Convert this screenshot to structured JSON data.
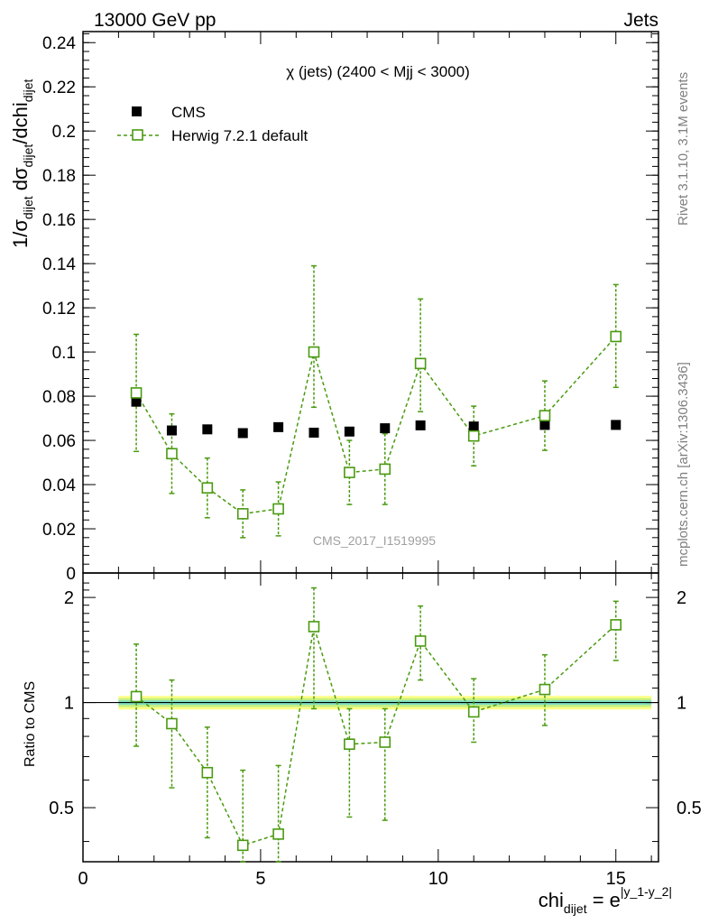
{
  "header": {
    "left": "13000 GeV pp",
    "right": "Jets"
  },
  "side_labels": {
    "rivet": "Rivet 3.1.10,  3.1M events",
    "mcplots": "mcplots.cern.ch [arXiv:1306.3436]"
  },
  "colors": {
    "cms": "#000000",
    "herwig": "#4a9a10",
    "band_outer": "#ffff88",
    "band_mid": "#c8f080",
    "band_inner": "#7fe0c0"
  },
  "chart_data": [
    {
      "type": "scatter",
      "panel": "main",
      "title": "χ (jets) (2400 < Mjj < 3000)",
      "watermark": "CMS_2017_I1519995",
      "ylabel": "1/σdijet dσdijet/dchidijet",
      "xlim": [
        0,
        16.2
      ],
      "ylim": [
        0,
        0.245
      ],
      "yticks": [
        0,
        0.02,
        0.04,
        0.06,
        0.08,
        0.1,
        0.12,
        0.14,
        0.16,
        0.18,
        0.2,
        0.22,
        0.24
      ],
      "ytick_labels": [
        "0",
        "0.02",
        "0.04",
        "0.06",
        "0.08",
        "0.1",
        "0.12",
        "0.14",
        "0.16",
        "0.18",
        "0.2",
        "0.22",
        "0.24"
      ],
      "legend_position": "top-left",
      "series": [
        {
          "name": "CMS",
          "style": "black filled squares",
          "x": [
            1.5,
            2.5,
            3.5,
            4.5,
            5.5,
            6.5,
            7.5,
            8.5,
            9.5,
            11.0,
            13.0,
            15.0
          ],
          "y": [
            0.0775,
            0.0645,
            0.065,
            0.0633,
            0.066,
            0.0635,
            0.064,
            0.0655,
            0.0668,
            0.0663,
            0.067,
            0.067
          ]
        },
        {
          "name": "Herwig 7.2.1 default",
          "style": "green open squares, dashed line",
          "x": [
            1.5,
            2.5,
            3.5,
            4.5,
            5.5,
            6.5,
            7.5,
            8.5,
            9.5,
            11.0,
            13.0,
            15.0
          ],
          "y": [
            0.0815,
            0.054,
            0.0385,
            0.0268,
            0.029,
            0.1,
            0.0455,
            0.047,
            0.0948,
            0.062,
            0.0712,
            0.107
          ],
          "err_lo": [
            0.0265,
            0.018,
            0.0135,
            0.0108,
            0.0122,
            0.025,
            0.0145,
            0.016,
            0.0218,
            0.0135,
            0.0157,
            0.023
          ],
          "err_hi": [
            0.0265,
            0.018,
            0.0135,
            0.0108,
            0.0122,
            0.039,
            0.0145,
            0.016,
            0.0292,
            0.0135,
            0.0157,
            0.0235
          ]
        }
      ]
    },
    {
      "type": "scatter",
      "panel": "ratio",
      "ylabel": "Ratio to CMS",
      "xlabel": "chidijet = e|y_1-y_2|",
      "xlim": [
        0,
        16.2
      ],
      "ylim": [
        0.35,
        2.35
      ],
      "xticks": [
        0,
        5,
        10,
        15
      ],
      "xtick_labels": [
        "0",
        "5",
        "10",
        "15"
      ],
      "yticks": [
        0.5,
        1,
        2
      ],
      "ytick_labels": [
        "0.5",
        "1",
        "2"
      ],
      "reference_line": 1,
      "band": {
        "x": [
          1,
          16
        ],
        "outer": [
          0.955,
          1.045
        ],
        "mid": [
          0.97,
          1.03
        ],
        "inner": [
          0.985,
          1.015
        ]
      },
      "series": [
        {
          "name": "Herwig 7.2.1 default",
          "x": [
            1.5,
            2.5,
            3.5,
            4.5,
            5.5,
            6.5,
            7.5,
            8.5,
            9.5,
            11.0,
            13.0,
            15.0
          ],
          "y": [
            1.04,
            0.87,
            0.63,
            0.39,
            0.42,
            1.65,
            0.76,
            0.77,
            1.5,
            0.94,
            1.09,
            1.67
          ],
          "err_lo": [
            0.29,
            0.3,
            0.22,
            0.15,
            0.18,
            0.69,
            0.29,
            0.31,
            0.34,
            0.17,
            0.23,
            0.35
          ],
          "err_hi": [
            0.43,
            0.29,
            0.22,
            0.25,
            0.24,
            0.48,
            0.2,
            0.19,
            0.39,
            0.23,
            0.28,
            0.28
          ]
        }
      ]
    }
  ]
}
